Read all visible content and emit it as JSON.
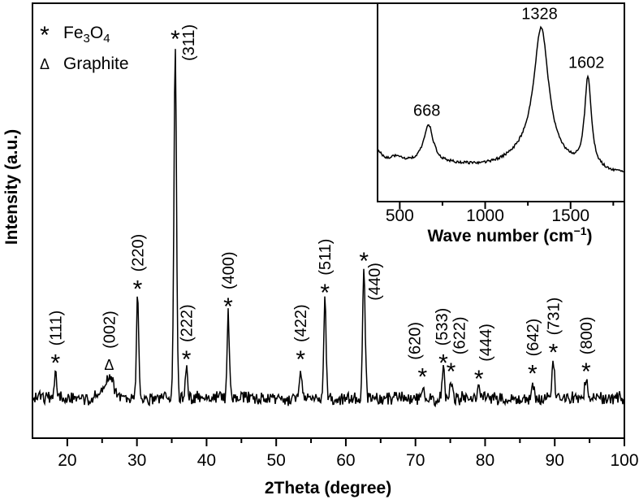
{
  "colors": {
    "line": "#000000",
    "background": "#ffffff",
    "text": "#000000"
  },
  "chart_data": [
    {
      "id": "xrd-pattern",
      "type": "line",
      "xlabel": "2Theta (degree)",
      "ylabel": "Intensity (a.u.)",
      "xlim": [
        15,
        100
      ],
      "x_major_ticks": [
        20,
        30,
        40,
        50,
        60,
        70,
        80,
        90,
        100
      ],
      "x_minor_ticks": [
        25,
        35,
        45,
        55,
        65,
        75,
        85,
        95
      ],
      "grid": false,
      "legend": {
        "position": "top-left",
        "fe3o4": {
          "marker": "*",
          "name_parts": [
            "Fe",
            "3",
            "O",
            "4"
          ]
        },
        "graphite": {
          "marker": "Δ",
          "name": "Graphite"
        }
      },
      "peaks": [
        {
          "two_theta": 18.3,
          "hkl": "(111)",
          "marker": "*",
          "rel_intensity": 8,
          "sigma_deg": 0.16
        },
        {
          "two_theta": 26.0,
          "hkl": "(002)",
          "marker": "Δ",
          "rel_intensity": 6.5,
          "sigma_deg": 0.65
        },
        {
          "two_theta": 30.1,
          "hkl": "(220)",
          "marker": "*",
          "rel_intensity": 29,
          "sigma_deg": 0.16
        },
        {
          "two_theta": 35.5,
          "hkl": "(311)",
          "marker": "*",
          "rel_intensity": 100,
          "sigma_deg": 0.18
        },
        {
          "two_theta": 37.1,
          "hkl": "(222)",
          "marker": "*",
          "rel_intensity": 9,
          "sigma_deg": 0.15
        },
        {
          "two_theta": 43.1,
          "hkl": "(400)",
          "marker": "*",
          "rel_intensity": 24,
          "sigma_deg": 0.16
        },
        {
          "two_theta": 53.5,
          "hkl": "(422)",
          "marker": "*",
          "rel_intensity": 9,
          "sigma_deg": 0.16
        },
        {
          "two_theta": 57.0,
          "hkl": "(511)",
          "marker": "*",
          "rel_intensity": 28,
          "sigma_deg": 0.17
        },
        {
          "two_theta": 62.6,
          "hkl": "(440)",
          "marker": "*",
          "rel_intensity": 37,
          "sigma_deg": 0.18
        },
        {
          "two_theta": 71.0,
          "hkl": "(620)",
          "marker": "*",
          "rel_intensity": 4,
          "sigma_deg": 0.15
        },
        {
          "two_theta": 74.0,
          "hkl": "(533)",
          "marker": "*",
          "rel_intensity": 8,
          "sigma_deg": 0.16
        },
        {
          "two_theta": 75.1,
          "hkl": "(622)",
          "marker": "*",
          "rel_intensity": 5.5,
          "sigma_deg": 0.15
        },
        {
          "two_theta": 79.1,
          "hkl": "(444)",
          "marker": "*",
          "rel_intensity": 3.5,
          "sigma_deg": 0.15
        },
        {
          "two_theta": 86.8,
          "hkl": "(642)",
          "marker": "*",
          "rel_intensity": 5,
          "sigma_deg": 0.15
        },
        {
          "two_theta": 89.8,
          "hkl": "(731)",
          "marker": "*",
          "rel_intensity": 11,
          "sigma_deg": 0.17
        },
        {
          "two_theta": 94.5,
          "hkl": "(800)",
          "marker": "*",
          "rel_intensity": 5.5,
          "sigma_deg": 0.16
        }
      ]
    },
    {
      "id": "raman-inset",
      "type": "line",
      "xlabel_parts": [
        "Wave number (cm",
        "−1",
        ")"
      ],
      "xlim": [
        370,
        1815
      ],
      "x_major_ticks": [
        500,
        1000,
        1500
      ],
      "x_minor_ticks": [
        750,
        1250,
        1750
      ],
      "grid": false,
      "peaks": [
        {
          "center": 668,
          "label": "668",
          "height": 47,
          "hwhm": 33
        },
        {
          "center": 1328,
          "label": "1328",
          "height": 158,
          "hwhm": 52
        },
        {
          "center": 1602,
          "label": "1602",
          "height": 112,
          "hwhm": 24
        }
      ]
    }
  ]
}
